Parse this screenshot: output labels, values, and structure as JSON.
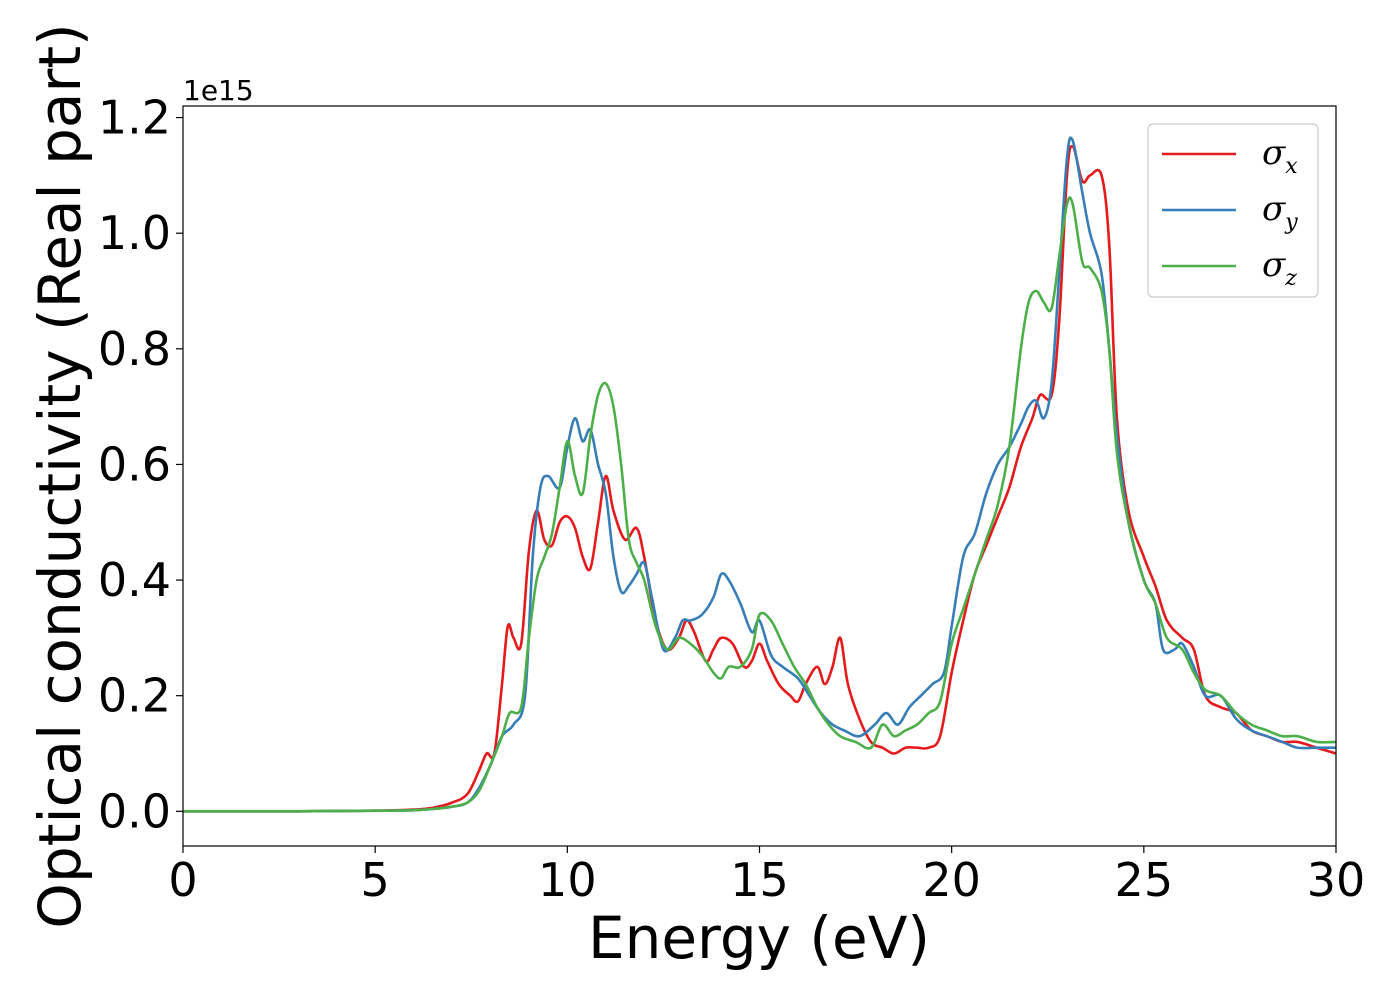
{
  "chart_data": {
    "type": "line",
    "xlabel": "Energy (eV)",
    "ylabel": "Optical conductivity (Real part)",
    "y_offset_label": "1e15",
    "xlim": [
      0,
      30
    ],
    "ylim": [
      -0.06,
      1.22
    ],
    "x_ticks": [
      0,
      5,
      10,
      15,
      20,
      25,
      30
    ],
    "x_tick_labels": [
      "0",
      "5",
      "10",
      "15",
      "20",
      "25",
      "30"
    ],
    "y_ticks": [
      0.0,
      0.2,
      0.4,
      0.6,
      0.8,
      1.0,
      1.2
    ],
    "y_tick_labels": [
      "0.0",
      "0.2",
      "0.4",
      "0.6",
      "0.8",
      "1.0",
      "1.2"
    ],
    "grid": false,
    "legend_position": "top-right",
    "series": [
      {
        "name": "σx",
        "legend_symbol": "σ",
        "legend_sub": "x",
        "color": "#e41a1c",
        "points": [
          [
            0,
            0
          ],
          [
            3,
            0
          ],
          [
            5,
            0.001
          ],
          [
            6,
            0.003
          ],
          [
            6.5,
            0.006
          ],
          [
            7,
            0.015
          ],
          [
            7.4,
            0.03
          ],
          [
            7.7,
            0.07
          ],
          [
            7.9,
            0.1
          ],
          [
            8.1,
            0.1
          ],
          [
            8.3,
            0.22
          ],
          [
            8.45,
            0.32
          ],
          [
            8.6,
            0.3
          ],
          [
            8.8,
            0.29
          ],
          [
            9.0,
            0.45
          ],
          [
            9.2,
            0.52
          ],
          [
            9.4,
            0.47
          ],
          [
            9.6,
            0.46
          ],
          [
            9.8,
            0.5
          ],
          [
            10.0,
            0.51
          ],
          [
            10.2,
            0.49
          ],
          [
            10.4,
            0.44
          ],
          [
            10.6,
            0.42
          ],
          [
            10.8,
            0.5
          ],
          [
            11.0,
            0.58
          ],
          [
            11.2,
            0.52
          ],
          [
            11.5,
            0.47
          ],
          [
            11.8,
            0.49
          ],
          [
            12.0,
            0.44
          ],
          [
            12.3,
            0.33
          ],
          [
            12.6,
            0.28
          ],
          [
            12.9,
            0.3
          ],
          [
            13.1,
            0.33
          ],
          [
            13.3,
            0.31
          ],
          [
            13.6,
            0.26
          ],
          [
            13.8,
            0.28
          ],
          [
            14.0,
            0.3
          ],
          [
            14.3,
            0.29
          ],
          [
            14.6,
            0.25
          ],
          [
            14.8,
            0.26
          ],
          [
            15.0,
            0.29
          ],
          [
            15.2,
            0.26
          ],
          [
            15.5,
            0.22
          ],
          [
            15.8,
            0.2
          ],
          [
            16.0,
            0.19
          ],
          [
            16.2,
            0.22
          ],
          [
            16.5,
            0.25
          ],
          [
            16.7,
            0.22
          ],
          [
            16.9,
            0.25
          ],
          [
            17.1,
            0.3
          ],
          [
            17.3,
            0.22
          ],
          [
            17.6,
            0.16
          ],
          [
            17.9,
            0.12
          ],
          [
            18.2,
            0.11
          ],
          [
            18.5,
            0.1
          ],
          [
            18.8,
            0.11
          ],
          [
            19.1,
            0.11
          ],
          [
            19.4,
            0.11
          ],
          [
            19.7,
            0.13
          ],
          [
            20.0,
            0.24
          ],
          [
            20.3,
            0.33
          ],
          [
            20.6,
            0.41
          ],
          [
            20.9,
            0.46
          ],
          [
            21.2,
            0.51
          ],
          [
            21.5,
            0.56
          ],
          [
            21.8,
            0.63
          ],
          [
            22.1,
            0.68
          ],
          [
            22.3,
            0.72
          ],
          [
            22.6,
            0.72
          ],
          [
            22.8,
            0.85
          ],
          [
            23.0,
            1.1
          ],
          [
            23.15,
            1.15
          ],
          [
            23.4,
            1.09
          ],
          [
            23.6,
            1.1
          ],
          [
            23.9,
            1.1
          ],
          [
            24.1,
            0.98
          ],
          [
            24.3,
            0.68
          ],
          [
            24.6,
            0.52
          ],
          [
            25.0,
            0.44
          ],
          [
            25.3,
            0.39
          ],
          [
            25.6,
            0.33
          ],
          [
            26.0,
            0.3
          ],
          [
            26.3,
            0.28
          ],
          [
            26.6,
            0.2
          ],
          [
            27.0,
            0.18
          ],
          [
            27.4,
            0.17
          ],
          [
            27.8,
            0.14
          ],
          [
            28.2,
            0.13
          ],
          [
            28.6,
            0.12
          ],
          [
            29.0,
            0.12
          ],
          [
            29.5,
            0.11
          ],
          [
            30,
            0.1
          ]
        ]
      },
      {
        "name": "σy",
        "legend_symbol": "σ",
        "legend_sub": "y",
        "color": "#377eb8",
        "points": [
          [
            0,
            0
          ],
          [
            3,
            0
          ],
          [
            5,
            0.001
          ],
          [
            6,
            0.002
          ],
          [
            6.5,
            0.004
          ],
          [
            7,
            0.008
          ],
          [
            7.4,
            0.015
          ],
          [
            7.7,
            0.04
          ],
          [
            8.0,
            0.08
          ],
          [
            8.3,
            0.13
          ],
          [
            8.6,
            0.15
          ],
          [
            8.9,
            0.2
          ],
          [
            9.1,
            0.44
          ],
          [
            9.3,
            0.56
          ],
          [
            9.5,
            0.58
          ],
          [
            9.8,
            0.56
          ],
          [
            10.0,
            0.63
          ],
          [
            10.2,
            0.68
          ],
          [
            10.4,
            0.64
          ],
          [
            10.6,
            0.66
          ],
          [
            10.8,
            0.6
          ],
          [
            11.0,
            0.55
          ],
          [
            11.2,
            0.44
          ],
          [
            11.4,
            0.38
          ],
          [
            11.6,
            0.39
          ],
          [
            11.8,
            0.41
          ],
          [
            12.0,
            0.43
          ],
          [
            12.2,
            0.37
          ],
          [
            12.5,
            0.28
          ],
          [
            12.8,
            0.3
          ],
          [
            13.0,
            0.33
          ],
          [
            13.2,
            0.33
          ],
          [
            13.5,
            0.34
          ],
          [
            13.8,
            0.37
          ],
          [
            14.0,
            0.41
          ],
          [
            14.2,
            0.4
          ],
          [
            14.5,
            0.36
          ],
          [
            14.8,
            0.31
          ],
          [
            15.0,
            0.33
          ],
          [
            15.3,
            0.27
          ],
          [
            15.6,
            0.25
          ],
          [
            16.0,
            0.23
          ],
          [
            16.3,
            0.2
          ],
          [
            16.6,
            0.17
          ],
          [
            16.9,
            0.15
          ],
          [
            17.2,
            0.14
          ],
          [
            17.6,
            0.13
          ],
          [
            18.0,
            0.15
          ],
          [
            18.3,
            0.17
          ],
          [
            18.6,
            0.15
          ],
          [
            18.9,
            0.18
          ],
          [
            19.2,
            0.2
          ],
          [
            19.5,
            0.22
          ],
          [
            19.8,
            0.24
          ],
          [
            20.0,
            0.32
          ],
          [
            20.3,
            0.44
          ],
          [
            20.6,
            0.48
          ],
          [
            20.9,
            0.55
          ],
          [
            21.2,
            0.6
          ],
          [
            21.5,
            0.63
          ],
          [
            21.8,
            0.67
          ],
          [
            22.0,
            0.7
          ],
          [
            22.2,
            0.71
          ],
          [
            22.4,
            0.68
          ],
          [
            22.6,
            0.74
          ],
          [
            22.8,
            0.93
          ],
          [
            23.0,
            1.13
          ],
          [
            23.15,
            1.16
          ],
          [
            23.4,
            1.07
          ],
          [
            23.6,
            1.0
          ],
          [
            23.9,
            0.93
          ],
          [
            24.1,
            0.8
          ],
          [
            24.3,
            0.65
          ],
          [
            24.6,
            0.5
          ],
          [
            25.0,
            0.4
          ],
          [
            25.3,
            0.36
          ],
          [
            25.5,
            0.28
          ],
          [
            25.8,
            0.28
          ],
          [
            26.0,
            0.29
          ],
          [
            26.3,
            0.25
          ],
          [
            26.6,
            0.2
          ],
          [
            27.0,
            0.2
          ],
          [
            27.4,
            0.16
          ],
          [
            27.8,
            0.14
          ],
          [
            28.2,
            0.13
          ],
          [
            28.6,
            0.12
          ],
          [
            29.0,
            0.11
          ],
          [
            29.5,
            0.11
          ],
          [
            30,
            0.11
          ]
        ]
      },
      {
        "name": "σz",
        "legend_symbol": "σ",
        "legend_sub": "z",
        "color": "#4daf4a",
        "points": [
          [
            0,
            0
          ],
          [
            3,
            0
          ],
          [
            5,
            0.001
          ],
          [
            6,
            0.002
          ],
          [
            6.5,
            0.004
          ],
          [
            7,
            0.008
          ],
          [
            7.4,
            0.015
          ],
          [
            7.7,
            0.035
          ],
          [
            8.0,
            0.08
          ],
          [
            8.3,
            0.13
          ],
          [
            8.5,
            0.17
          ],
          [
            8.8,
            0.18
          ],
          [
            9.0,
            0.3
          ],
          [
            9.2,
            0.4
          ],
          [
            9.4,
            0.44
          ],
          [
            9.6,
            0.48
          ],
          [
            9.8,
            0.56
          ],
          [
            10.0,
            0.64
          ],
          [
            10.2,
            0.58
          ],
          [
            10.4,
            0.55
          ],
          [
            10.6,
            0.65
          ],
          [
            10.8,
            0.72
          ],
          [
            11.0,
            0.74
          ],
          [
            11.2,
            0.7
          ],
          [
            11.4,
            0.6
          ],
          [
            11.6,
            0.47
          ],
          [
            11.8,
            0.43
          ],
          [
            12.0,
            0.4
          ],
          [
            12.3,
            0.32
          ],
          [
            12.6,
            0.28
          ],
          [
            12.9,
            0.3
          ],
          [
            13.2,
            0.29
          ],
          [
            13.5,
            0.27
          ],
          [
            13.8,
            0.24
          ],
          [
            14.0,
            0.23
          ],
          [
            14.2,
            0.25
          ],
          [
            14.5,
            0.25
          ],
          [
            14.8,
            0.28
          ],
          [
            15.0,
            0.34
          ],
          [
            15.3,
            0.33
          ],
          [
            15.6,
            0.29
          ],
          [
            15.9,
            0.25
          ],
          [
            16.2,
            0.22
          ],
          [
            16.5,
            0.18
          ],
          [
            16.8,
            0.15
          ],
          [
            17.1,
            0.13
          ],
          [
            17.5,
            0.12
          ],
          [
            17.9,
            0.11
          ],
          [
            18.2,
            0.15
          ],
          [
            18.5,
            0.13
          ],
          [
            18.8,
            0.14
          ],
          [
            19.1,
            0.15
          ],
          [
            19.4,
            0.17
          ],
          [
            19.7,
            0.19
          ],
          [
            20.0,
            0.29
          ],
          [
            20.3,
            0.35
          ],
          [
            20.6,
            0.41
          ],
          [
            20.9,
            0.47
          ],
          [
            21.2,
            0.53
          ],
          [
            21.5,
            0.63
          ],
          [
            21.8,
            0.8
          ],
          [
            22.0,
            0.88
          ],
          [
            22.2,
            0.9
          ],
          [
            22.4,
            0.88
          ],
          [
            22.6,
            0.87
          ],
          [
            22.8,
            0.96
          ],
          [
            23.0,
            1.05
          ],
          [
            23.15,
            1.05
          ],
          [
            23.4,
            0.95
          ],
          [
            23.6,
            0.94
          ],
          [
            23.9,
            0.9
          ],
          [
            24.1,
            0.8
          ],
          [
            24.3,
            0.62
          ],
          [
            24.6,
            0.5
          ],
          [
            25.0,
            0.4
          ],
          [
            25.3,
            0.36
          ],
          [
            25.6,
            0.3
          ],
          [
            26.0,
            0.28
          ],
          [
            26.3,
            0.24
          ],
          [
            26.6,
            0.21
          ],
          [
            27.0,
            0.2
          ],
          [
            27.4,
            0.17
          ],
          [
            27.8,
            0.15
          ],
          [
            28.2,
            0.14
          ],
          [
            28.6,
            0.13
          ],
          [
            29.0,
            0.13
          ],
          [
            29.5,
            0.12
          ],
          [
            30,
            0.12
          ]
        ]
      }
    ]
  }
}
